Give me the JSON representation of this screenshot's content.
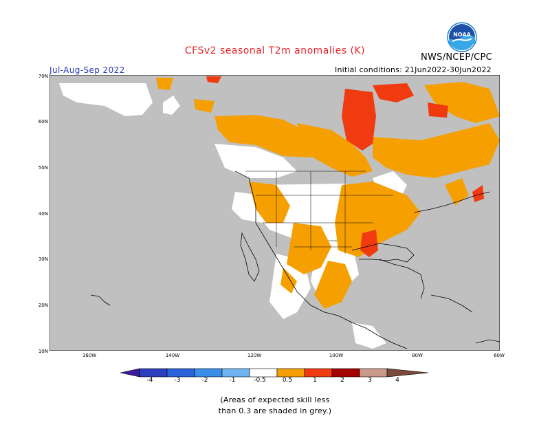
{
  "header": {
    "title": "CFSv2 seasonal T2m anomalies (K)",
    "agency": "NWS/NCEP/CPC",
    "season": "Jul-Aug-Sep 2022",
    "initial_conditions": "Initial conditions: 21Jun2022-30Jun2022",
    "logo_text": "NOAA"
  },
  "map": {
    "latitude_labels": [
      "70N",
      "60N",
      "50N",
      "40N",
      "30N",
      "20N",
      "10N"
    ],
    "longitude_labels": [
      "160W",
      "140W",
      "120W",
      "100W",
      "80W",
      "60W"
    ],
    "colors": {
      "ocean_frame": "#ffffff",
      "land_low_skill": "#c0c0c0",
      "near_normal": "#ffffff",
      "warm_0_5_to_1": "#f5a000",
      "warm_1_to_2": "#f03a10",
      "warm_2_to_3": "#a50000",
      "coastline": "#000000"
    }
  },
  "colorbar": {
    "tick_labels": [
      "-4",
      "-3",
      "-2",
      "-1",
      "-0.5",
      "0.5",
      "1",
      "2",
      "3",
      "4"
    ],
    "colors": [
      "#3a1a9e",
      "#2c3fbe",
      "#2b62d8",
      "#3a8ee8",
      "#6fb3f2",
      "#ffffff",
      "#f5a000",
      "#f03a10",
      "#a50000",
      "#c99a8a",
      "#7a4a3a"
    ]
  },
  "footnote": {
    "line1": "(Areas of expected skill less",
    "line2": "than 0.3 are shaded in grey.)"
  }
}
